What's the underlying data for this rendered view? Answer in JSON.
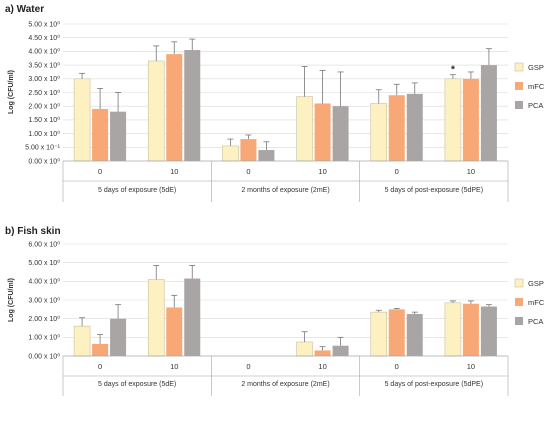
{
  "colors": {
    "GSP": "#fdf1c1",
    "mFC": "#f7a876",
    "PCA": "#a9a5a5",
    "bar_stroke": "#c9c1a0",
    "grid": "#d9d9d9",
    "axis": "#a6a6a6",
    "error": "#777777"
  },
  "chart_data": [
    {
      "type": "bar",
      "title": "a) Water",
      "xlabel": "",
      "ylabel": "Log (CFU/ml)",
      "ylim": [
        0,
        5
      ],
      "yticks": [
        0,
        0.5,
        1,
        1.5,
        2,
        2.5,
        3,
        3.5,
        4,
        4.5,
        5
      ],
      "ytick_labels": [
        "0.00 x 10⁰",
        "5.00 x 10⁻¹",
        "1.00 x 10⁰",
        "1.50 x 10⁰",
        "2.00 x 10⁰",
        "2.50 x 10⁰",
        "3.00 x 10⁰",
        "3.50 x 10⁰",
        "4.00 x 10⁰",
        "4.50 x 10⁰",
        "5.00 x 10⁰"
      ],
      "grid": true,
      "legend": "right",
      "groups": [
        "5 days of exposure (5dE)",
        "2 months of exposure (2mE)",
        "5 days of post-exposure (5dPE)"
      ],
      "categories": [
        "0",
        "10",
        "0",
        "10",
        "0",
        "10"
      ],
      "series": [
        {
          "name": "GSP",
          "values": [
            3.0,
            3.65,
            0.55,
            2.35,
            2.1,
            3.0
          ],
          "errors": [
            0.2,
            0.55,
            0.25,
            1.1,
            0.5,
            0.15
          ]
        },
        {
          "name": "mFC",
          "values": [
            1.9,
            3.9,
            0.8,
            2.1,
            2.4,
            3.0
          ],
          "errors": [
            0.75,
            0.45,
            0.15,
            1.2,
            0.4,
            0.25
          ]
        },
        {
          "name": "PCA",
          "values": [
            1.8,
            4.05,
            0.4,
            2.0,
            2.45,
            3.5
          ],
          "errors": [
            0.7,
            0.4,
            0.3,
            1.25,
            0.4,
            0.6
          ]
        }
      ],
      "annotations": [
        {
          "text": "*",
          "category_index": 5,
          "series": "GSP"
        }
      ]
    },
    {
      "type": "bar",
      "title": "b) Fish skin",
      "xlabel": "",
      "ylabel": "Log (CFU/ml)",
      "ylim": [
        0,
        6
      ],
      "yticks": [
        0,
        1,
        2,
        3,
        4,
        5,
        6
      ],
      "ytick_labels": [
        "0.00 x 10⁰",
        "1.00 x 10⁰",
        "2.00 x 10⁰",
        "3.00 x 10⁰",
        "4.00 x 10⁰",
        "5.00 x 10⁰",
        "6.00 x 10⁰"
      ],
      "grid": true,
      "legend": "right",
      "groups": [
        "5 days of exposure (5dE)",
        "2 months of exposure (2mE)",
        "5 days of post-exposure (5dPE)"
      ],
      "categories": [
        "0",
        "10",
        "0",
        "10",
        "0",
        "10"
      ],
      "series": [
        {
          "name": "GSP",
          "values": [
            1.6,
            4.1,
            null,
            0.75,
            2.35,
            2.85
          ],
          "errors": [
            0.45,
            0.75,
            null,
            0.55,
            0.1,
            0.1
          ]
        },
        {
          "name": "mFC",
          "values": [
            0.65,
            2.6,
            null,
            0.3,
            2.5,
            2.8
          ],
          "errors": [
            0.5,
            0.65,
            null,
            0.2,
            0.05,
            0.15
          ]
        },
        {
          "name": "PCA",
          "values": [
            2.0,
            4.15,
            null,
            0.55,
            2.25,
            2.65
          ],
          "errors": [
            0.75,
            0.7,
            null,
            0.45,
            0.1,
            0.1
          ]
        }
      ],
      "annotations": []
    }
  ]
}
